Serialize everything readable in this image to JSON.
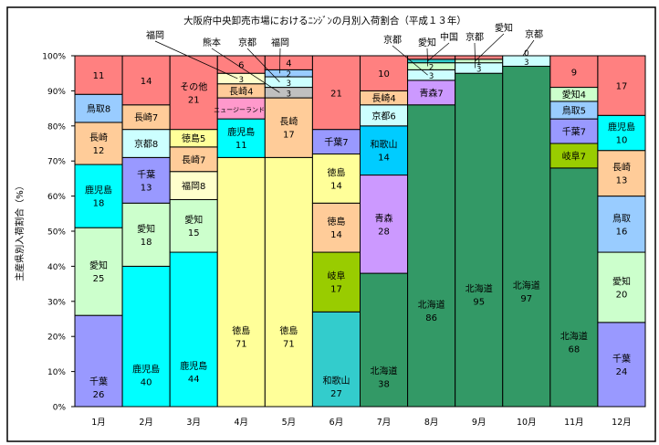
{
  "chart_data": {
    "type": "bar",
    "stacked": true,
    "title": "大阪府中央卸売市場におけるﾆﾝｼﾞﾝの月別入荷割合（平成１３年）",
    "xlabel": "",
    "ylabel": "主産県別入荷割合（%）",
    "ylim": [
      0,
      100
    ],
    "yticks": [
      "0%",
      "10%",
      "20%",
      "30%",
      "40%",
      "50%",
      "60%",
      "70%",
      "80%",
      "90%",
      "100%"
    ],
    "categories": [
      "1月",
      "2月",
      "3月",
      "4月",
      "5月",
      "6月",
      "7月",
      "8月",
      "9月",
      "10月",
      "11月",
      "12月"
    ],
    "grid": false,
    "colors": {
      "千葉": "#9999FF",
      "愛知": "#CCFFCC",
      "鹿児島": "#00FFFF",
      "長崎": "#FFCC99",
      "鳥取": "#99CCFF",
      "その他": "#FF8080",
      "京都": "#CCFFFF",
      "徳島": "#FFFF99",
      "福岡": "#FFFFCC",
      "ニュージーランド": "#FF99CC",
      "熊本": "#C0C0C0",
      "和歌山": "#33CCCC",
      "岐阜": "#99CC00",
      "北海道": "#339966",
      "青森": "#CC99FF",
      "中国": "#33CCCC"
    },
    "months": [
      [
        {
          "n": "千葉",
          "v": 26,
          "m": "stack"
        },
        {
          "n": "愛知",
          "v": 25,
          "m": "stack"
        },
        {
          "n": "鹿児島",
          "v": 18,
          "m": "stack"
        },
        {
          "n": "長崎",
          "v": 12,
          "m": "stack"
        },
        {
          "n": "鳥取",
          "v": 8,
          "m": "inline"
        },
        {
          "n": "その他",
          "v": 11,
          "m": "value"
        }
      ],
      [
        {
          "n": "鹿児島",
          "v": 40,
          "m": "stack"
        },
        {
          "n": "愛知",
          "v": 18,
          "m": "stack"
        },
        {
          "n": "千葉",
          "v": 13,
          "m": "stack"
        },
        {
          "n": "京都",
          "v": 8,
          "m": "inline"
        },
        {
          "n": "長崎",
          "v": 7,
          "m": "inline"
        },
        {
          "n": "その他",
          "v": 14,
          "m": "value"
        }
      ],
      [
        {
          "n": "鹿児島",
          "v": 44,
          "m": "stack"
        },
        {
          "n": "愛知",
          "v": 15,
          "m": "stack"
        },
        {
          "n": "福岡",
          "v": 8,
          "m": "inline"
        },
        {
          "n": "長崎",
          "v": 7,
          "m": "inline"
        },
        {
          "n": "徳島",
          "v": 5,
          "m": "inline"
        },
        {
          "n": "その他",
          "v": 21,
          "m": "stack"
        }
      ],
      [
        {
          "n": "徳島",
          "v": 71,
          "m": "stack"
        },
        {
          "n": "鹿児島",
          "v": 11,
          "m": "stack"
        },
        {
          "n": "ニュージーランド",
          "v": 6,
          "m": "inline"
        },
        {
          "n": "長崎",
          "v": 4,
          "m": "inline"
        },
        {
          "n": "福岡",
          "v": 3,
          "m": "value"
        },
        {
          "n": "その他",
          "v": 6,
          "m": "value"
        }
      ],
      [
        {
          "n": "徳島",
          "v": 71,
          "m": "stack"
        },
        {
          "n": "長崎",
          "v": 17,
          "m": "stack"
        },
        {
          "n": "熊本",
          "v": 3,
          "m": "value"
        },
        {
          "n": "京都",
          "v": 3,
          "m": "value"
        },
        {
          "n": "福岡",
          "v": 2,
          "m": "value",
          "c": "#99CCFF"
        },
        {
          "n": "その他",
          "v": 4,
          "m": "value"
        }
      ],
      [
        {
          "n": "和歌山",
          "v": 27,
          "m": "stack"
        },
        {
          "n": "岐阜",
          "v": 17,
          "m": "stack"
        },
        {
          "n": "徳島",
          "v": 14,
          "m": "stack",
          "c": "#FFCC99"
        },
        {
          "n": "徳島",
          "v": 14,
          "m": "stack"
        },
        {
          "n": "千葉",
          "v": 7,
          "m": "inline"
        },
        {
          "n": "その他",
          "v": 21,
          "m": "value"
        }
      ],
      [
        {
          "n": "北海道",
          "v": 38,
          "m": "stack"
        },
        {
          "n": "青森",
          "v": 28,
          "m": "stack"
        },
        {
          "n": "和歌山",
          "v": 14,
          "m": "stack",
          "c": "#00CCFF"
        },
        {
          "n": "京都",
          "v": 6,
          "m": "inline"
        },
        {
          "n": "長崎",
          "v": 4,
          "m": "inline"
        },
        {
          "n": "その他",
          "v": 10,
          "m": "value"
        }
      ],
      [
        {
          "n": "北海道",
          "v": 86,
          "m": "stack"
        },
        {
          "n": "青森",
          "v": 7,
          "m": "inline"
        },
        {
          "n": "京都",
          "v": 3,
          "m": "value"
        },
        {
          "n": "愛知",
          "v": 2,
          "m": "value"
        },
        {
          "n": "中国",
          "v": 1,
          "m": "none"
        },
        {
          "n": "その他",
          "v": 1,
          "m": "none"
        }
      ],
      [
        {
          "n": "北海道",
          "v": 95,
          "m": "stack"
        },
        {
          "n": "京都",
          "v": 3,
          "m": "value"
        },
        {
          "n": "愛知",
          "v": 1,
          "m": "value"
        },
        {
          "n": "その他",
          "v": 1,
          "m": "none"
        }
      ],
      [
        {
          "n": "北海道",
          "v": 97,
          "m": "stack"
        },
        {
          "n": "京都",
          "v": 3,
          "m": "value"
        },
        {
          "n": "その他",
          "v": 0,
          "m": "value"
        }
      ],
      [
        {
          "n": "北海道",
          "v": 68,
          "m": "stack"
        },
        {
          "n": "岐阜",
          "v": 7,
          "m": "inline"
        },
        {
          "n": "千葉",
          "v": 7,
          "m": "inline"
        },
        {
          "n": "鳥取",
          "v": 5,
          "m": "inline"
        },
        {
          "n": "愛知",
          "v": 4,
          "m": "inline"
        },
        {
          "n": "その他",
          "v": 9,
          "m": "value"
        }
      ],
      [
        {
          "n": "千葉",
          "v": 24,
          "m": "stack"
        },
        {
          "n": "愛知",
          "v": 20,
          "m": "stack"
        },
        {
          "n": "鳥取",
          "v": 16,
          "m": "stack"
        },
        {
          "n": "長崎",
          "v": 13,
          "m": "stack"
        },
        {
          "n": "鹿児島",
          "v": 10,
          "m": "stack"
        },
        {
          "n": "その他",
          "v": 17,
          "m": "value"
        }
      ]
    ],
    "annotations": [
      {
        "text": "福岡",
        "month": 3,
        "seg": 4
      },
      {
        "text": "熊本",
        "month": 4,
        "seg": 2
      },
      {
        "text": "京都",
        "month": 4,
        "seg": 3
      },
      {
        "text": "福岡",
        "month": 4,
        "seg": 4
      },
      {
        "text": "京都",
        "month": 7,
        "seg": 2
      },
      {
        "text": "愛知",
        "month": 7,
        "seg": 3
      },
      {
        "text": "中国",
        "month": 7,
        "seg": 4
      },
      {
        "text": "京都",
        "month": 8,
        "seg": 1
      },
      {
        "text": "愛知",
        "month": 8,
        "seg": 2
      },
      {
        "text": "京都",
        "month": 9,
        "seg": 2
      }
    ]
  }
}
